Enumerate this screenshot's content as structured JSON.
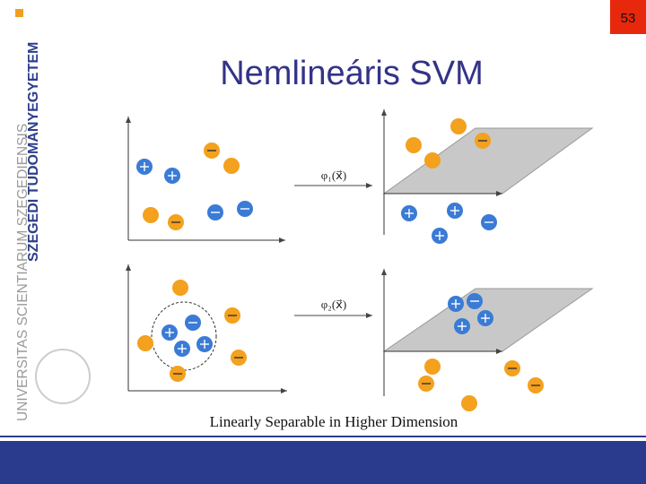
{
  "slide_number": "53",
  "title": "Nemlineáris SVM",
  "sidebar": {
    "university_name": "SZEGEDI TUDOMÁNYEGYETEM",
    "latin_name": "UNIVERSITAS SCIENTIARUM SZEGEDIENSIS"
  },
  "figure": {
    "mapping_1": "φ₁(x⃗)",
    "mapping_2": "φ₂(x⃗)",
    "caption": "Linearly Separable in Higher Dimension"
  }
}
